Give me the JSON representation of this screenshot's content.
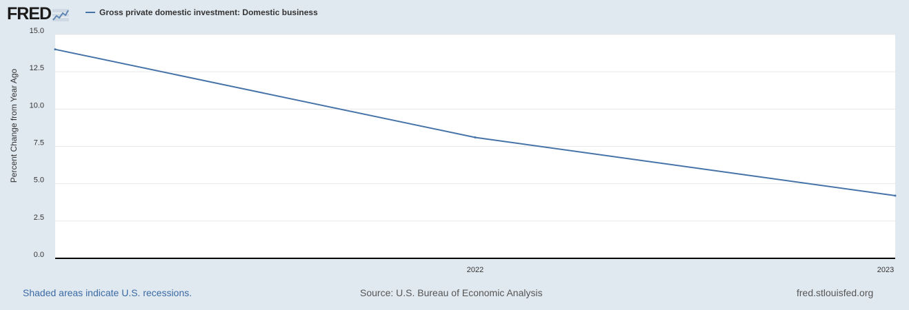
{
  "brand": {
    "logo_text": "FRED",
    "logo_icon": "line-graph-icon"
  },
  "legend": {
    "label": "Gross private domestic investment: Domestic business"
  },
  "colors": {
    "series": "#4572a7",
    "background": "#e1e9f0",
    "plot_background": "#ffffff",
    "gridline": "#e6e6e6",
    "axis": "#000000",
    "link": "#3a6aa5"
  },
  "footer": {
    "recession_note": "Shaded areas indicate U.S. recessions.",
    "source": "Source: U.S. Bureau of Economic Analysis",
    "site": "fred.stlouisfed.org"
  },
  "chart_data": {
    "type": "line",
    "title": "",
    "xlabel": "",
    "ylabel": "Percent Change from Year Ago",
    "x_domain": [
      2021,
      2023
    ],
    "x_ticks": [
      {
        "value": 2022,
        "label": "2022"
      },
      {
        "value": 2023,
        "label": "2023"
      }
    ],
    "ylim": [
      0,
      15
    ],
    "y_ticks": [
      "0.0",
      "2.5",
      "5.0",
      "7.5",
      "10.0",
      "12.5",
      "15.0"
    ],
    "grid": true,
    "legend_position": "top-left",
    "series": [
      {
        "name": "Gross private domestic investment: Domestic business",
        "x": [
          2021,
          2022,
          2023
        ],
        "values": [
          14.0,
          8.1,
          4.2
        ]
      }
    ]
  }
}
